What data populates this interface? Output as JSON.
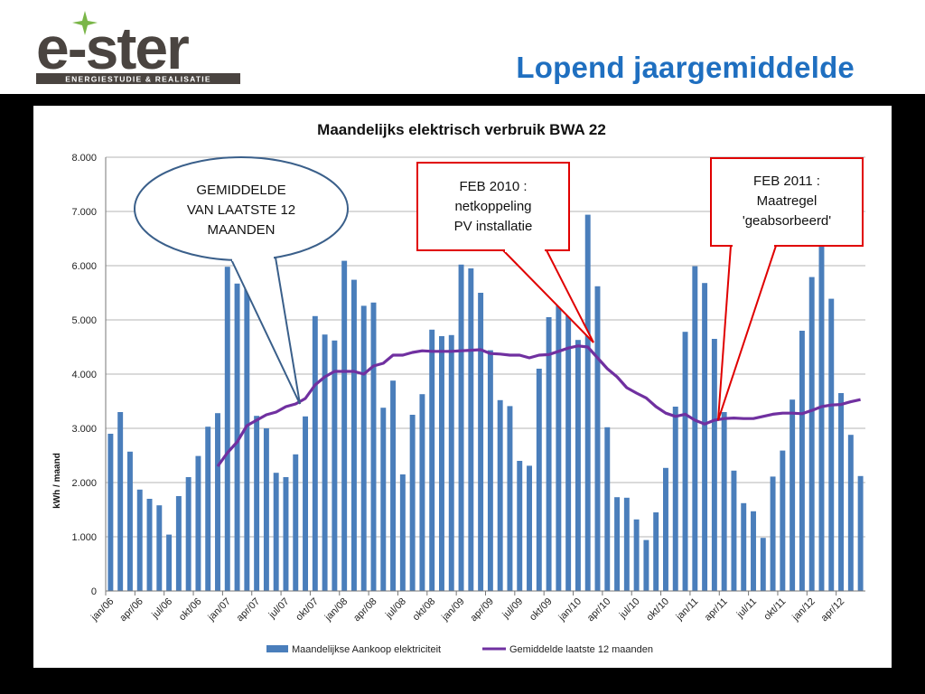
{
  "header": {
    "logo_text": "e-ster",
    "logo_tagline": "ENERGIESTUDIE & REALISATIE",
    "title": "Lopend jaargemiddelde"
  },
  "colors": {
    "bar": "#4a7ebb",
    "line": "#7030a0",
    "title_blue": "#1f6fc0",
    "callout_red": "#e00000",
    "callout_blue": "#3a5f8a",
    "logo_dark": "#4a4440",
    "logo_green": "#7ab648"
  },
  "chart_data": {
    "type": "bar",
    "title": "Maandelijks elektrisch verbruik BWA 22",
    "ylabel": "kWh / maand",
    "xlabel": "",
    "ylim": [
      0,
      8000
    ],
    "y_ticks": [
      "0",
      "1.000",
      "2.000",
      "3.000",
      "4.000",
      "5.000",
      "6.000",
      "7.000",
      "8.000"
    ],
    "x_tick_labels": [
      "jan/06",
      "apr/06",
      "jul/06",
      "okt/06",
      "jan/07",
      "apr/07",
      "jul/07",
      "okt/07",
      "jan/08",
      "apr/08",
      "jul/08",
      "okt/08",
      "jan/09",
      "apr/09",
      "jul/09",
      "okt/09",
      "jan/10",
      "apr/10",
      "jul/10",
      "okt/10",
      "jan/11",
      "apr/11",
      "jul/11",
      "okt/11",
      "jan/12",
      "apr/12"
    ],
    "series": [
      {
        "name": "Maandelijkse Aankoop elektriciteit",
        "kind": "bar",
        "values": [
          2900,
          3300,
          2570,
          1870,
          1700,
          1580,
          1040,
          1750,
          2100,
          2490,
          3030,
          3280,
          5980,
          5670,
          5840,
          3230,
          3000,
          2180,
          2100,
          2520,
          3220,
          5070,
          4730,
          4620,
          6090,
          5740,
          5260,
          5320,
          3380,
          3880,
          2150,
          3250,
          3630,
          4820,
          4700,
          4720,
          6020,
          5950,
          5500,
          4440,
          3520,
          3410,
          2400,
          2310,
          4100,
          5050,
          5540,
          5330,
          4630,
          6940,
          5620,
          3020,
          1730,
          1720,
          1320,
          940,
          1450,
          2270,
          3400,
          4780,
          5990,
          5680,
          4650,
          3300,
          2220,
          1620,
          1470,
          980,
          2110,
          2590,
          3530,
          4800,
          5790,
          6700,
          5390,
          3650,
          2880,
          2120
        ]
      },
      {
        "name": "Gemiddelde laatste 12 maanden",
        "kind": "line",
        "start_index": 11,
        "values": [
          2300,
          2550,
          2750,
          3050,
          3150,
          3250,
          3300,
          3400,
          3450,
          3550,
          3800,
          3950,
          4050,
          4050,
          4050,
          4000,
          4150,
          4200,
          4350,
          4350,
          4400,
          4430,
          4420,
          4420,
          4420,
          4430,
          4440,
          4450,
          4380,
          4370,
          4350,
          4350,
          4300,
          4350,
          4360,
          4420,
          4480,
          4520,
          4500,
          4300,
          4100,
          3950,
          3750,
          3650,
          3560,
          3400,
          3280,
          3220,
          3260,
          3150,
          3080,
          3150,
          3180,
          3190,
          3180,
          3180,
          3220,
          3260,
          3280,
          3280,
          3270,
          3330,
          3400,
          3430,
          3440,
          3490,
          3530
        ]
      }
    ],
    "legend": [
      "Maandelijkse Aankoop elektriciteit",
      "Gemiddelde laatste 12 maanden"
    ],
    "legend_position": "bottom",
    "annotations": [
      {
        "kind": "ellipse",
        "lines": [
          "GEMIDDELDE",
          "VAN LAATSTE 12",
          "MAANDEN"
        ]
      },
      {
        "kind": "box",
        "lines": [
          "FEB 2010 :",
          "netkoppeling",
          "PV installatie"
        ]
      },
      {
        "kind": "box",
        "lines": [
          "FEB 2011 :",
          "Maatregel",
          "'geabsorbeerd'"
        ]
      }
    ]
  }
}
